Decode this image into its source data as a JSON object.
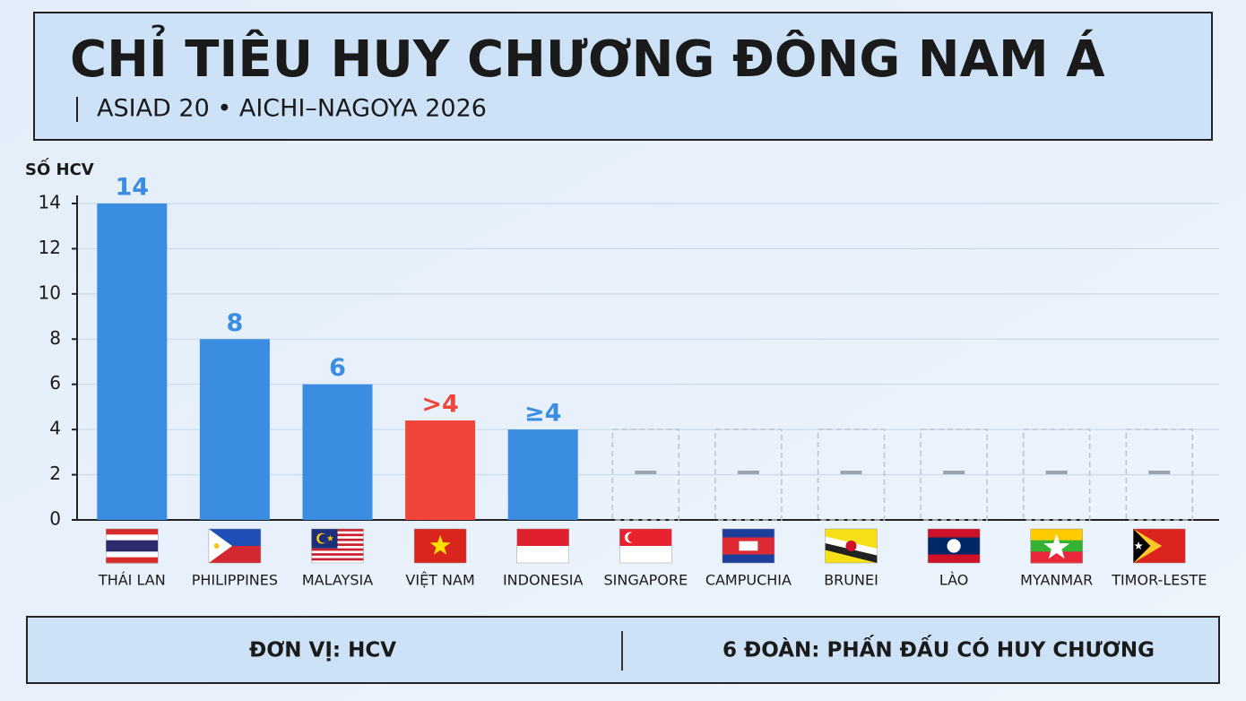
{
  "chart_data": {
    "type": "bar",
    "title": "CHỈ TIÊU HUY CHƯƠNG ĐÔNG NAM Á",
    "subtitle": "ASIAD 20 • AICHI–NAGOYA 2026",
    "y_label": "SỐ HCV",
    "categories": [
      "THÁI LAN",
      "PHILIPPINES",
      "MALAYSIA",
      "VIỆT NAM",
      "INDONESIA",
      "SINGAPORE",
      "CAMPUCHIA",
      "BRUNEI",
      "LÀO",
      "MYANMAR",
      "TIMOR-LESTE"
    ],
    "values": [
      14,
      8,
      6,
      4.4,
      4,
      null,
      null,
      null,
      null,
      null,
      null
    ],
    "value_labels": [
      "14",
      "8",
      "6",
      ">4",
      "≥4",
      null,
      null,
      null,
      null,
      null,
      null
    ],
    "colors": [
      "#3a8de0",
      "#3a8de0",
      "#3a8de0",
      "#f2453a",
      "#3a8de0",
      null,
      null,
      null,
      null,
      null,
      null
    ],
    "ylim": [
      0,
      14
    ],
    "yticks": [
      0,
      2,
      4,
      6,
      8,
      10,
      12,
      14
    ],
    "grid": true
  },
  "footer": {
    "left": "ĐƠN VỊ: HCV",
    "right": "6 ĐOÀN: PHẤN ĐẤU CÓ HUY CHƯƠNG"
  }
}
